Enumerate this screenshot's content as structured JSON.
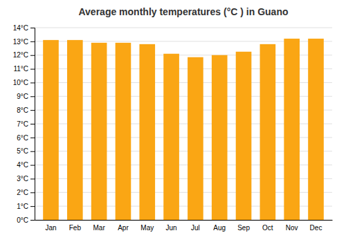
{
  "chart_data": {
    "type": "bar",
    "title": "Average monthly temperatures (°C ) in Guano",
    "categories": [
      "Jan",
      "Feb",
      "Mar",
      "Apr",
      "May",
      "Jun",
      "Jul",
      "Aug",
      "Sep",
      "Oct",
      "Nov",
      "Dec"
    ],
    "values": [
      13.1,
      13.1,
      12.9,
      12.9,
      12.8,
      12.1,
      11.85,
      12.0,
      12.25,
      12.8,
      13.2,
      13.2
    ],
    "color": "#faa614",
    "ylim": [
      0,
      14
    ],
    "yticks": [
      {
        "value": 0,
        "label": "0°C"
      },
      {
        "value": 1,
        "label": "1°C"
      },
      {
        "value": 2,
        "label": "2°C"
      },
      {
        "value": 3,
        "label": "3°C"
      },
      {
        "value": 4,
        "label": "4°C"
      },
      {
        "value": 5,
        "label": "5°C"
      },
      {
        "value": 6,
        "label": "6°C"
      },
      {
        "value": 7,
        "label": "7°C"
      },
      {
        "value": 8,
        "label": "8°C"
      },
      {
        "value": 9,
        "label": "9°C"
      },
      {
        "value": 10,
        "label": "10°C"
      },
      {
        "value": 11,
        "label": "11°C"
      },
      {
        "value": 12,
        "label": "12°C"
      },
      {
        "value": 13,
        "label": "13°C"
      },
      {
        "value": 14,
        "label": "14°C"
      }
    ],
    "grid": true
  }
}
